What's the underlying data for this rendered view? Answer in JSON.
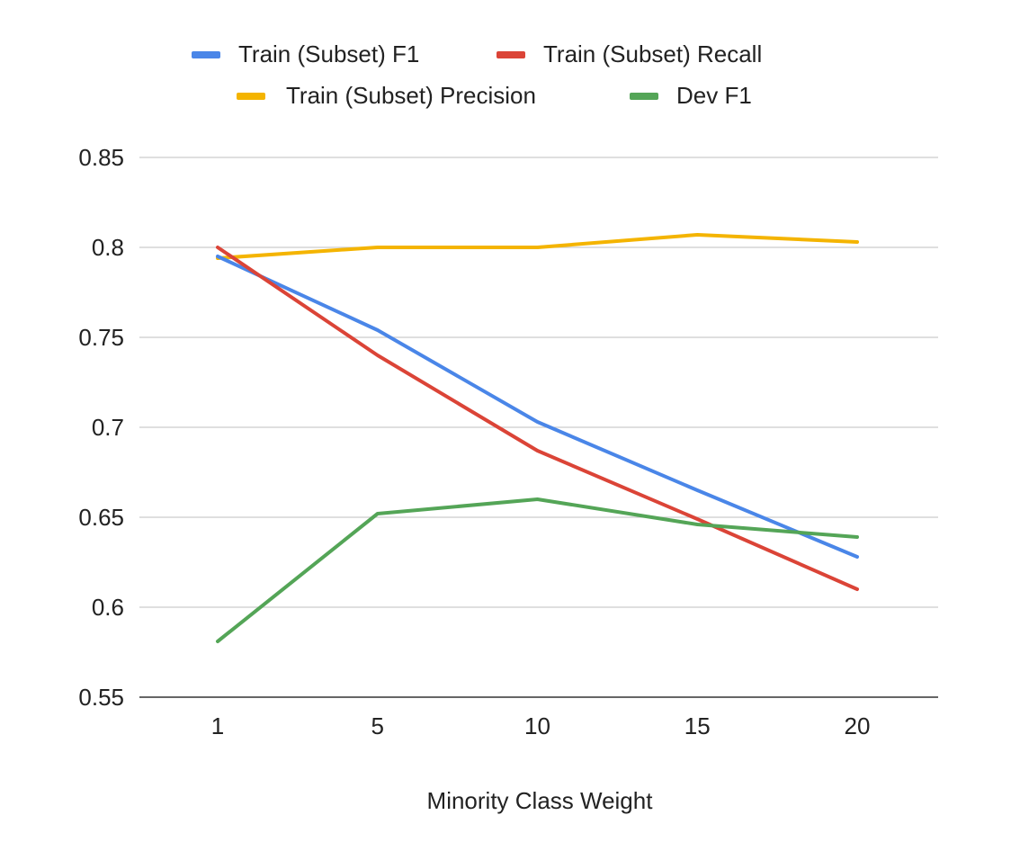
{
  "chart_data": {
    "type": "line",
    "title": "",
    "xlabel": "Minority Class Weight",
    "ylabel": "",
    "categories": [
      "1",
      "5",
      "10",
      "15",
      "20"
    ],
    "ylim": [
      0.55,
      0.85
    ],
    "y_ticks": [
      0.55,
      0.6,
      0.65,
      0.7,
      0.75,
      0.8,
      0.85
    ],
    "y_tick_labels": [
      "0.55",
      "0.6",
      "0.65",
      "0.7",
      "0.75",
      "0.8",
      "0.85"
    ],
    "grid": true,
    "legend_position": "top",
    "series": [
      {
        "name": "Train (Subset) F1",
        "color": "#4a86e8",
        "values": [
          0.795,
          0.754,
          0.703,
          0.665,
          0.628
        ]
      },
      {
        "name": "Train (Subset) Recall",
        "color": "#db4437",
        "values": [
          0.8,
          0.74,
          0.687,
          0.649,
          0.61
        ]
      },
      {
        "name": "Train (Subset) Precision",
        "color": "#f4b400",
        "values": [
          0.794,
          0.8,
          0.8,
          0.807,
          0.803
        ]
      },
      {
        "name": "Dev F1",
        "color": "#54a557",
        "values": [
          0.581,
          0.652,
          0.66,
          0.646,
          0.639
        ]
      }
    ]
  }
}
